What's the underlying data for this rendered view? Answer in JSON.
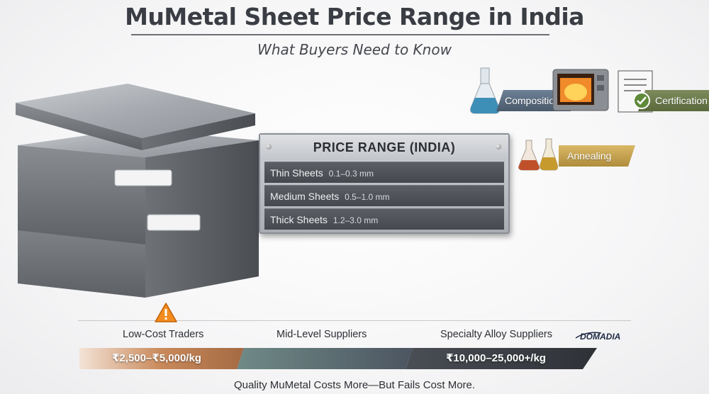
{
  "header": {
    "title": "MuMetal Sheet Price Range in India",
    "subtitle": "What Buyers Need to Know"
  },
  "price_panel": {
    "title": "PRICE RANGE (INDIA)",
    "rows": [
      {
        "label": "Thin Sheets",
        "range": "0.1–0.3 mm"
      },
      {
        "label": "Medium Sheets",
        "range": "0.5–1.0 mm"
      },
      {
        "label": "Thick Sheets",
        "range": "1.2–3.0 mm"
      }
    ]
  },
  "factors": {
    "composition": "Composition",
    "certification": "Certification",
    "annealing": "Annealing"
  },
  "tiers": {
    "low": "Low-Cost Traders",
    "mid": "Mid-Level Suppliers",
    "specialty": "Specialty Alloy Suppliers",
    "brand": "DOMADIA"
  },
  "price_bar": {
    "low_price": "₹2,500–₹5,000/kg",
    "high_price": "₹10,000–25,000+/kg"
  },
  "footer": "Quality MuMetal Costs More—But Fails Cost More."
}
